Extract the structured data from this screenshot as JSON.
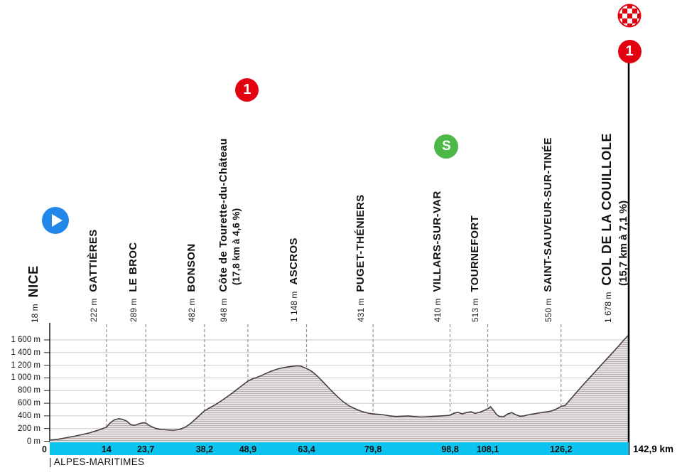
{
  "colors": {
    "accent_cyan": "#0cc2ee",
    "start_blue": "#2187e8",
    "category_red": "#e3000f",
    "sprint_green": "#4db848",
    "profile_fill": "#e8e2e2",
    "profile_hatch": "#a89fa1",
    "profile_outline": "#45403f"
  },
  "badges": {
    "category": "1",
    "sprint": "S"
  },
  "icons": {
    "start": "play-circle",
    "category": "category-1-badge",
    "sprint": "sprint-badge",
    "finish": "checkered-flag-circle"
  },
  "chart_data": {
    "type": "area",
    "title": "",
    "xlabel": "km",
    "ylabel": "m",
    "xlim": [
      0,
      142.9
    ],
    "ylim": [
      0,
      1700
    ],
    "grid": true,
    "department": "ALPES-MARITIMES",
    "department_boundary": "|",
    "y_ticks": [
      {
        "value": 1600,
        "label": "1 600 m"
      },
      {
        "value": 1400,
        "label": "1 400 m"
      },
      {
        "value": 1200,
        "label": "1 200 m"
      },
      {
        "value": 1000,
        "label": "1 000 m"
      },
      {
        "value": 800,
        "label": "800 m"
      },
      {
        "value": 600,
        "label": "600 m"
      },
      {
        "value": 400,
        "label": "400 m"
      },
      {
        "value": 200,
        "label": "200 m"
      },
      {
        "value": 0,
        "label": "0 m"
      }
    ],
    "km_ticks": [
      {
        "km": 0,
        "label": "0"
      },
      {
        "km": 14,
        "label": "14"
      },
      {
        "km": 23.7,
        "label": "23,7"
      },
      {
        "km": 38.2,
        "label": "38,2"
      },
      {
        "km": 48.9,
        "label": "48,9"
      },
      {
        "km": 63.4,
        "label": "63,4"
      },
      {
        "km": 79.8,
        "label": "79,8"
      },
      {
        "km": 98.8,
        "label": "98,8"
      },
      {
        "km": 108.1,
        "label": "108,1"
      },
      {
        "km": 126.2,
        "label": "126,2"
      },
      {
        "km": 142.9,
        "label": "142,9 km"
      }
    ],
    "waypoints": [
      {
        "name": "NICE",
        "elevation": "18 m",
        "km": 0,
        "big": true,
        "icon": "start"
      },
      {
        "name": "GATTIÈRES",
        "elevation": "222 m",
        "km": 14
      },
      {
        "name": "LE BROC",
        "elevation": "289 m",
        "km": 23.7
      },
      {
        "name": "BONSON",
        "elevation": "482 m",
        "km": 38.2
      },
      {
        "name": "Côte de Tourette-du-Château",
        "elevation": "948 m",
        "km": 48.9,
        "sub": "(17,8 km à 4,6 %)",
        "icon": "cat1"
      },
      {
        "name": "ASCROS",
        "elevation": "1 148 m",
        "km": 63.4
      },
      {
        "name": "PUGET-THÉNIERS",
        "elevation": "431 m",
        "km": 79.8
      },
      {
        "name": "VILLARS-SUR-VAR",
        "elevation": "410 m",
        "km": 98.8,
        "icon": "sprint"
      },
      {
        "name": "TOURNEFORT",
        "elevation": "513 m",
        "km": 108.1
      },
      {
        "name": "SAINT-SAUVEUR-SUR-TINÉE",
        "elevation": "550 m",
        "km": 126.2
      },
      {
        "name": "COL DE LA COUILLOLE",
        "elevation": "1 678 m",
        "km": 142.9,
        "big": true,
        "sub": "(15,7 km à 7,1 %)",
        "icon": "finish-cat1"
      }
    ],
    "profile": [
      [
        0,
        18
      ],
      [
        2,
        30
      ],
      [
        4,
        55
      ],
      [
        6,
        78
      ],
      [
        8,
        105
      ],
      [
        10,
        135
      ],
      [
        12,
        175
      ],
      [
        14,
        222
      ],
      [
        15,
        295
      ],
      [
        16,
        340
      ],
      [
        17,
        355
      ],
      [
        18,
        345
      ],
      [
        19,
        318
      ],
      [
        20,
        262
      ],
      [
        21,
        250
      ],
      [
        22,
        275
      ],
      [
        23,
        292
      ],
      [
        23.7,
        289
      ],
      [
        24.5,
        252
      ],
      [
        26,
        205
      ],
      [
        27.5,
        185
      ],
      [
        29,
        178
      ],
      [
        30.5,
        173
      ],
      [
        32,
        185
      ],
      [
        33.5,
        225
      ],
      [
        35,
        292
      ],
      [
        36.5,
        382
      ],
      [
        38.2,
        482
      ],
      [
        39.5,
        528
      ],
      [
        41,
        582
      ],
      [
        42.5,
        645
      ],
      [
        44,
        712
      ],
      [
        45.5,
        782
      ],
      [
        47,
        858
      ],
      [
        48.9,
        948
      ],
      [
        50,
        985
      ],
      [
        51,
        1005
      ],
      [
        52,
        1030
      ],
      [
        53.5,
        1075
      ],
      [
        55,
        1115
      ],
      [
        56.5,
        1145
      ],
      [
        58,
        1165
      ],
      [
        59.5,
        1180
      ],
      [
        61,
        1190
      ],
      [
        62,
        1186
      ],
      [
        63.4,
        1148
      ],
      [
        64.5,
        1110
      ],
      [
        65.5,
        1060
      ],
      [
        66.5,
        1000
      ],
      [
        68,
        900
      ],
      [
        69.5,
        800
      ],
      [
        71,
        705
      ],
      [
        72.5,
        620
      ],
      [
        74,
        555
      ],
      [
        75.5,
        510
      ],
      [
        77,
        470
      ],
      [
        78.5,
        445
      ],
      [
        79.8,
        431
      ],
      [
        81,
        425
      ],
      [
        82.5,
        415
      ],
      [
        84,
        400
      ],
      [
        85.5,
        390
      ],
      [
        87,
        395
      ],
      [
        88.5,
        400
      ],
      [
        90,
        390
      ],
      [
        91.5,
        382
      ],
      [
        93,
        385
      ],
      [
        94.5,
        392
      ],
      [
        96,
        398
      ],
      [
        97.5,
        403
      ],
      [
        98.8,
        410
      ],
      [
        99.8,
        445
      ],
      [
        100.8,
        455
      ],
      [
        101.8,
        432
      ],
      [
        103,
        455
      ],
      [
        104,
        465
      ],
      [
        105,
        440
      ],
      [
        106,
        455
      ],
      [
        107,
        480
      ],
      [
        108.1,
        513
      ],
      [
        108.8,
        545
      ],
      [
        109.5,
        490
      ],
      [
        110.3,
        420
      ],
      [
        111,
        390
      ],
      [
        112,
        385
      ],
      [
        113,
        430
      ],
      [
        114,
        452
      ],
      [
        115,
        420
      ],
      [
        116,
        395
      ],
      [
        117,
        400
      ],
      [
        118,
        415
      ],
      [
        119,
        428
      ],
      [
        120,
        438
      ],
      [
        121,
        448
      ],
      [
        122,
        458
      ],
      [
        123,
        468
      ],
      [
        124,
        482
      ],
      [
        125,
        508
      ],
      [
        126.2,
        550
      ],
      [
        127.2,
        565
      ],
      [
        128.5,
        660
      ],
      [
        130,
        770
      ],
      [
        131.5,
        880
      ],
      [
        133,
        985
      ],
      [
        134.5,
        1090
      ],
      [
        136,
        1195
      ],
      [
        137.5,
        1300
      ],
      [
        139,
        1405
      ],
      [
        140.5,
        1510
      ],
      [
        141.7,
        1600
      ],
      [
        142.9,
        1678
      ]
    ]
  }
}
